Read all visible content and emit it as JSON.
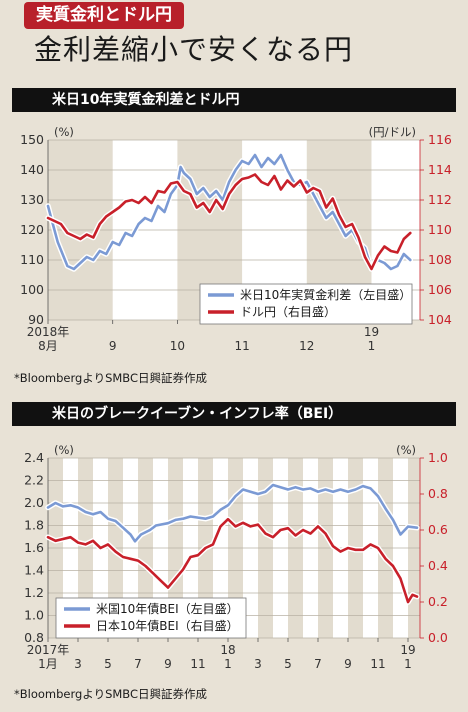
{
  "header": {
    "tag": "実質金利とドル円",
    "title": "金利差縮小で安くなる円"
  },
  "chart1": {
    "section_title": "米日10年実質金利差とドル円",
    "source": "*BloombergよりSMBC日興証券作成",
    "left_unit": "(%)",
    "right_unit": "(円/ドル)",
    "chart_data": {
      "type": "line",
      "title": "米日10年実質金利差とドル円",
      "x_ticks": [
        {
          "month": 0,
          "label": "8月",
          "year": "2018年"
        },
        {
          "month": 1,
          "label": "9"
        },
        {
          "month": 2,
          "label": "10"
        },
        {
          "month": 3,
          "label": "11"
        },
        {
          "month": 4,
          "label": "12"
        },
        {
          "month": 5,
          "label": "1",
          "year": "19"
        }
      ],
      "xlim": [
        0,
        5.75
      ],
      "left_axis": {
        "ylim": [
          90,
          150
        ],
        "ticks": [
          90,
          100,
          110,
          120,
          130,
          140,
          150
        ]
      },
      "right_axis": {
        "ylim": [
          104,
          116
        ],
        "ticks": [
          104,
          106,
          108,
          110,
          112,
          114,
          116
        ]
      },
      "series": [
        {
          "name": "米日10年実質金利差（左目盛）",
          "axis": "left",
          "color": "#7b9ad4",
          "points": [
            [
              0.0,
              128
            ],
            [
              0.05,
              124
            ],
            [
              0.15,
              116
            ],
            [
              0.3,
              108
            ],
            [
              0.4,
              107
            ],
            [
              0.5,
              109
            ],
            [
              0.6,
              111
            ],
            [
              0.7,
              110
            ],
            [
              0.8,
              113
            ],
            [
              0.9,
              112
            ],
            [
              1.0,
              116
            ],
            [
              1.1,
              115
            ],
            [
              1.2,
              119
            ],
            [
              1.3,
              118
            ],
            [
              1.4,
              122
            ],
            [
              1.5,
              124
            ],
            [
              1.6,
              123
            ],
            [
              1.7,
              128
            ],
            [
              1.8,
              126
            ],
            [
              1.9,
              132
            ],
            [
              2.0,
              135
            ],
            [
              2.05,
              141
            ],
            [
              2.1,
              139
            ],
            [
              2.2,
              137
            ],
            [
              2.3,
              132
            ],
            [
              2.4,
              134
            ],
            [
              2.5,
              131
            ],
            [
              2.6,
              133
            ],
            [
              2.7,
              130
            ],
            [
              2.8,
              136
            ],
            [
              2.9,
              140
            ],
            [
              3.0,
              143
            ],
            [
              3.1,
              142
            ],
            [
              3.2,
              145
            ],
            [
              3.3,
              141
            ],
            [
              3.4,
              144
            ],
            [
              3.5,
              142
            ],
            [
              3.6,
              145
            ],
            [
              3.7,
              140
            ],
            [
              3.8,
              136
            ],
            [
              3.9,
              135
            ],
            [
              4.0,
              136
            ],
            [
              4.1,
              132
            ],
            [
              4.2,
              128
            ],
            [
              4.3,
              124
            ],
            [
              4.4,
              126
            ],
            [
              4.5,
              122
            ],
            [
              4.6,
              118
            ],
            [
              4.7,
              120
            ],
            [
              4.8,
              116
            ],
            [
              4.9,
              114
            ],
            [
              5.0,
              107
            ],
            [
              5.1,
              110
            ],
            [
              5.2,
              109
            ],
            [
              5.3,
              107
            ],
            [
              5.4,
              108
            ],
            [
              5.5,
              112
            ],
            [
              5.6,
              110
            ]
          ]
        },
        {
          "name": "ドル円（右目盛）",
          "axis": "right",
          "color": "#c8202a",
          "points": [
            [
              0.0,
              110.8
            ],
            [
              0.1,
              110.6
            ],
            [
              0.2,
              110.4
            ],
            [
              0.3,
              109.8
            ],
            [
              0.4,
              109.6
            ],
            [
              0.5,
              109.4
            ],
            [
              0.6,
              109.7
            ],
            [
              0.7,
              109.5
            ],
            [
              0.8,
              110.4
            ],
            [
              0.9,
              110.9
            ],
            [
              1.0,
              111.2
            ],
            [
              1.1,
              111.5
            ],
            [
              1.2,
              111.9
            ],
            [
              1.3,
              112.0
            ],
            [
              1.4,
              111.8
            ],
            [
              1.5,
              112.2
            ],
            [
              1.6,
              111.8
            ],
            [
              1.7,
              112.6
            ],
            [
              1.8,
              112.5
            ],
            [
              1.9,
              113.1
            ],
            [
              2.0,
              113.2
            ],
            [
              2.1,
              112.6
            ],
            [
              2.2,
              112.4
            ],
            [
              2.3,
              111.5
            ],
            [
              2.4,
              111.8
            ],
            [
              2.5,
              111.2
            ],
            [
              2.6,
              112.0
            ],
            [
              2.7,
              111.4
            ],
            [
              2.8,
              112.4
            ],
            [
              2.9,
              113.0
            ],
            [
              3.0,
              113.4
            ],
            [
              3.1,
              113.5
            ],
            [
              3.2,
              113.7
            ],
            [
              3.3,
              113.2
            ],
            [
              3.4,
              113.0
            ],
            [
              3.5,
              113.6
            ],
            [
              3.6,
              112.7
            ],
            [
              3.7,
              113.3
            ],
            [
              3.8,
              112.9
            ],
            [
              3.9,
              113.3
            ],
            [
              4.0,
              112.5
            ],
            [
              4.1,
              112.8
            ],
            [
              4.2,
              112.6
            ],
            [
              4.3,
              111.5
            ],
            [
              4.4,
              112.1
            ],
            [
              4.5,
              111.0
            ],
            [
              4.6,
              110.2
            ],
            [
              4.7,
              110.4
            ],
            [
              4.8,
              109.5
            ],
            [
              4.9,
              108.2
            ],
            [
              5.0,
              107.4
            ],
            [
              5.1,
              108.3
            ],
            [
              5.2,
              108.9
            ],
            [
              5.3,
              108.6
            ],
            [
              5.4,
              108.5
            ],
            [
              5.5,
              109.4
            ],
            [
              5.6,
              109.8
            ]
          ]
        }
      ],
      "legend_placement": "bottom-right"
    }
  },
  "chart2": {
    "section_title": "米日のブレークイーブン・インフレ率（BEI）",
    "source": "*BloombergよりSMBC日興証券作成",
    "left_unit": "(%)",
    "right_unit": "(%)",
    "chart_data": {
      "type": "line",
      "title": "米日のブレークイーブン・インフレ率（BEI）",
      "x_ticks": [
        {
          "month": 0,
          "label": "1月",
          "year": "2017年"
        },
        {
          "month": 2,
          "label": "3"
        },
        {
          "month": 4,
          "label": "5"
        },
        {
          "month": 6,
          "label": "7"
        },
        {
          "month": 8,
          "label": "9"
        },
        {
          "month": 10,
          "label": "11"
        },
        {
          "month": 12,
          "label": "1",
          "year": "18"
        },
        {
          "month": 14,
          "label": "3"
        },
        {
          "month": 16,
          "label": "5"
        },
        {
          "month": 18,
          "label": "7"
        },
        {
          "month": 20,
          "label": "9"
        },
        {
          "month": 22,
          "label": "11"
        },
        {
          "month": 24,
          "label": "1",
          "year": "19"
        }
      ],
      "xlim": [
        0,
        24.8
      ],
      "left_axis": {
        "ylim": [
          0.8,
          2.4
        ],
        "ticks": [
          0.8,
          1.0,
          1.2,
          1.4,
          1.6,
          1.8,
          2.0,
          2.2,
          2.4
        ]
      },
      "right_axis": {
        "ylim": [
          0,
          1.0
        ],
        "ticks": [
          0,
          0.2,
          0.4,
          0.6,
          0.8,
          1.0
        ]
      },
      "series": [
        {
          "name": "米国10年債BEI（左目盛）",
          "axis": "left",
          "color": "#7b9ad4",
          "points": [
            [
              0.0,
              1.96
            ],
            [
              0.5,
              2.0
            ],
            [
              1.0,
              1.97
            ],
            [
              1.5,
              1.98
            ],
            [
              2.0,
              1.96
            ],
            [
              2.5,
              1.92
            ],
            [
              3.0,
              1.9
            ],
            [
              3.5,
              1.92
            ],
            [
              4.0,
              1.86
            ],
            [
              4.5,
              1.84
            ],
            [
              5.0,
              1.78
            ],
            [
              5.5,
              1.72
            ],
            [
              5.8,
              1.66
            ],
            [
              6.2,
              1.72
            ],
            [
              6.8,
              1.76
            ],
            [
              7.2,
              1.8
            ],
            [
              8.0,
              1.82
            ],
            [
              8.5,
              1.85
            ],
            [
              9.0,
              1.86
            ],
            [
              9.5,
              1.88
            ],
            [
              10.0,
              1.87
            ],
            [
              10.5,
              1.86
            ],
            [
              11.0,
              1.88
            ],
            [
              11.5,
              1.94
            ],
            [
              12.0,
              1.98
            ],
            [
              12.5,
              2.06
            ],
            [
              13.0,
              2.12
            ],
            [
              13.5,
              2.1
            ],
            [
              14.0,
              2.08
            ],
            [
              14.5,
              2.1
            ],
            [
              15.0,
              2.16
            ],
            [
              15.5,
              2.14
            ],
            [
              16.0,
              2.12
            ],
            [
              16.5,
              2.14
            ],
            [
              17.0,
              2.12
            ],
            [
              17.5,
              2.13
            ],
            [
              18.0,
              2.1
            ],
            [
              18.5,
              2.12
            ],
            [
              19.0,
              2.1
            ],
            [
              19.5,
              2.12
            ],
            [
              20.0,
              2.1
            ],
            [
              20.5,
              2.12
            ],
            [
              21.0,
              2.15
            ],
            [
              21.5,
              2.13
            ],
            [
              22.0,
              2.06
            ],
            [
              22.5,
              1.95
            ],
            [
              23.0,
              1.85
            ],
            [
              23.5,
              1.72
            ],
            [
              24.0,
              1.79
            ],
            [
              24.6,
              1.78
            ]
          ]
        },
        {
          "name": "日本10年債BEI（右目盛）",
          "axis": "right",
          "color": "#c8202a",
          "points": [
            [
              0.0,
              0.56
            ],
            [
              0.5,
              0.54
            ],
            [
              1.0,
              0.55
            ],
            [
              1.5,
              0.56
            ],
            [
              2.0,
              0.53
            ],
            [
              2.5,
              0.52
            ],
            [
              3.0,
              0.54
            ],
            [
              3.5,
              0.5
            ],
            [
              4.0,
              0.52
            ],
            [
              4.5,
              0.48
            ],
            [
              5.0,
              0.45
            ],
            [
              5.5,
              0.44
            ],
            [
              6.0,
              0.43
            ],
            [
              6.5,
              0.4
            ],
            [
              7.0,
              0.36
            ],
            [
              7.5,
              0.32
            ],
            [
              8.0,
              0.28
            ],
            [
              8.5,
              0.33
            ],
            [
              9.0,
              0.38
            ],
            [
              9.5,
              0.45
            ],
            [
              10.0,
              0.46
            ],
            [
              10.5,
              0.5
            ],
            [
              11.0,
              0.52
            ],
            [
              11.5,
              0.62
            ],
            [
              12.0,
              0.66
            ],
            [
              12.5,
              0.62
            ],
            [
              13.0,
              0.64
            ],
            [
              13.5,
              0.62
            ],
            [
              14.0,
              0.63
            ],
            [
              14.5,
              0.58
            ],
            [
              15.0,
              0.56
            ],
            [
              15.5,
              0.6
            ],
            [
              16.0,
              0.61
            ],
            [
              16.5,
              0.57
            ],
            [
              17.0,
              0.6
            ],
            [
              17.5,
              0.58
            ],
            [
              18.0,
              0.62
            ],
            [
              18.5,
              0.58
            ],
            [
              19.0,
              0.51
            ],
            [
              19.5,
              0.48
            ],
            [
              20.0,
              0.5
            ],
            [
              20.5,
              0.49
            ],
            [
              21.0,
              0.49
            ],
            [
              21.5,
              0.52
            ],
            [
              22.0,
              0.5
            ],
            [
              22.5,
              0.44
            ],
            [
              23.0,
              0.4
            ],
            [
              23.5,
              0.33
            ],
            [
              24.0,
              0.2
            ],
            [
              24.3,
              0.24
            ],
            [
              24.6,
              0.23
            ]
          ]
        }
      ],
      "legend_placement": "bottom-left"
    }
  }
}
